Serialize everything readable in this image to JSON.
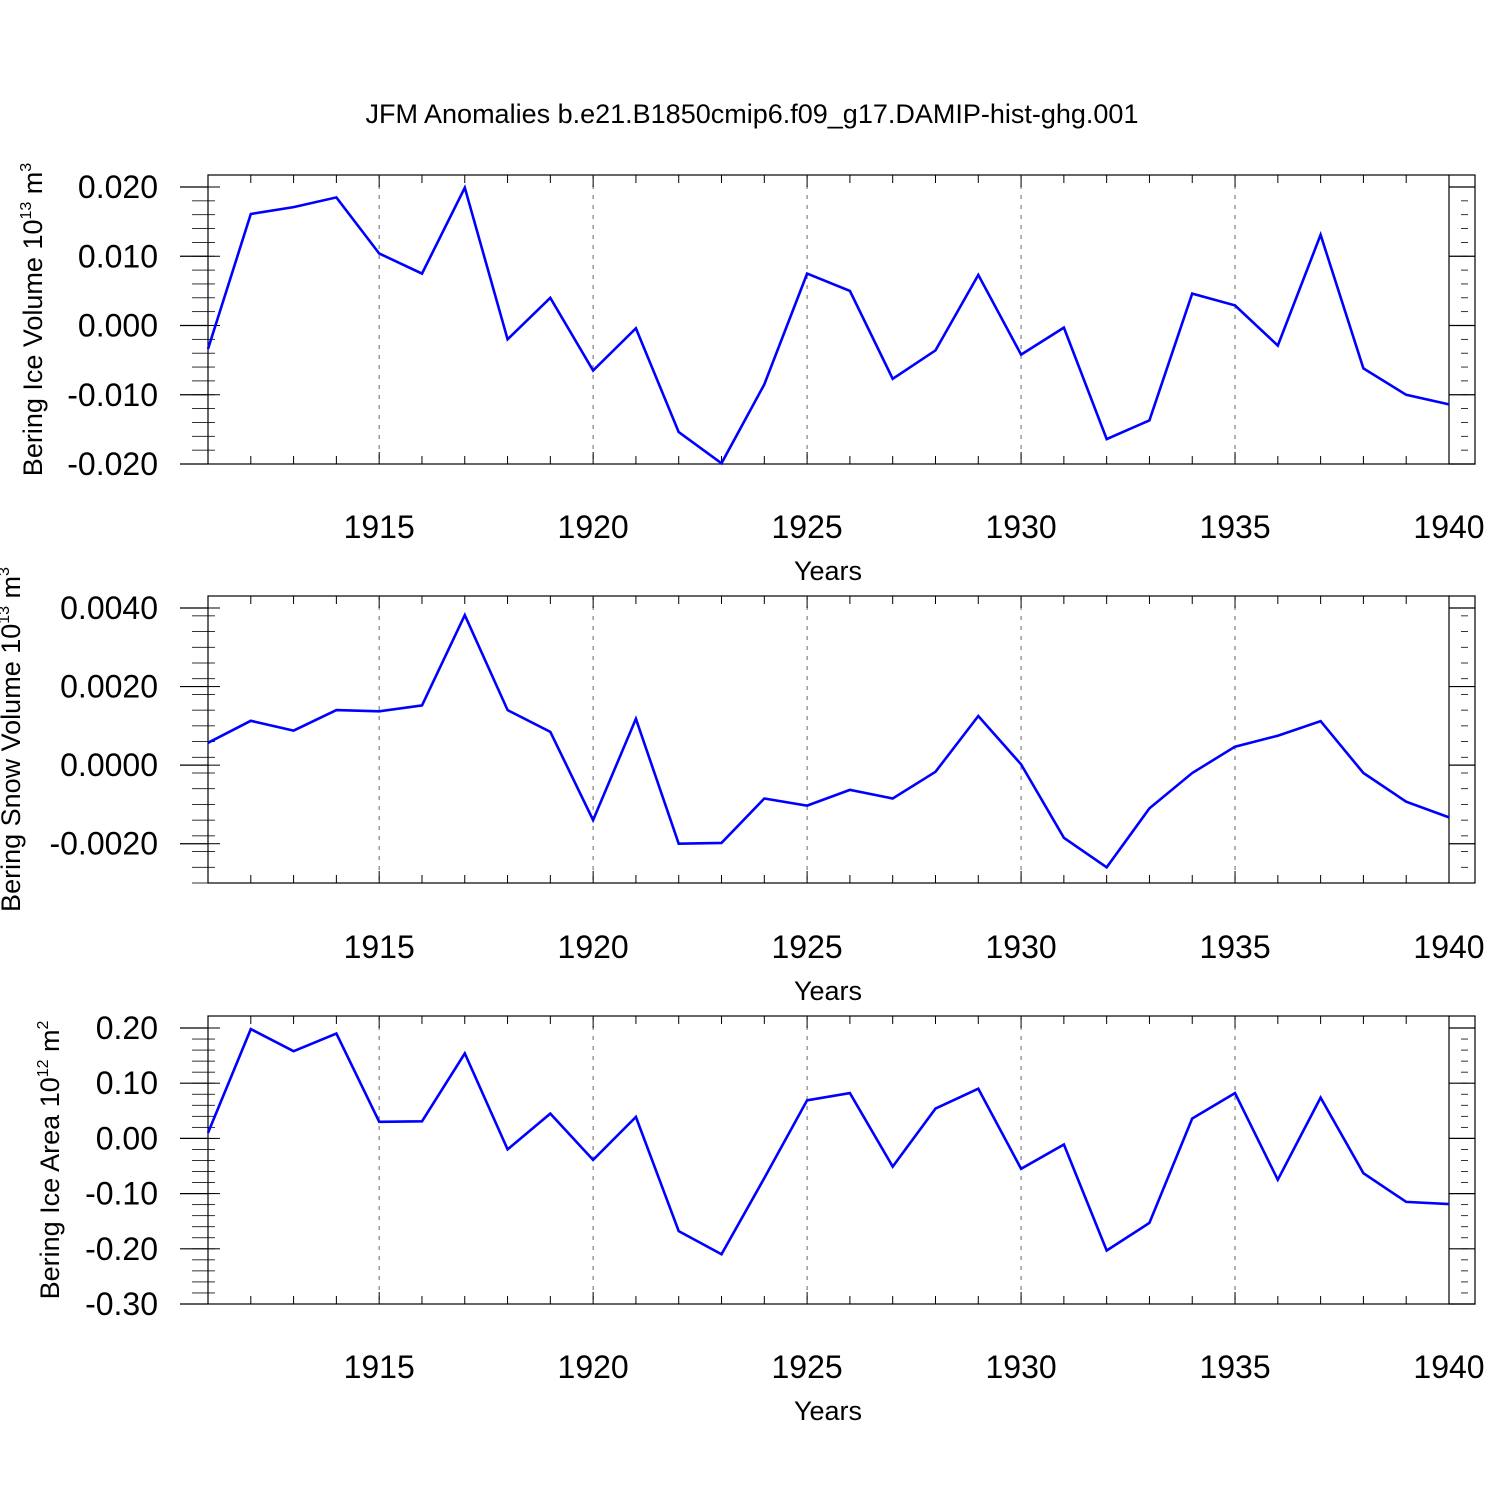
{
  "title": "JFM Anomalies b.e21.B1850cmip6.f09_g17.DAMIP-hist-ghg.001",
  "colors": {
    "line": "#0000ff",
    "axis": "#000000",
    "grid": "#808080"
  },
  "chart_data": [
    {
      "type": "line",
      "ylabel": {
        "main": "Bering Ice Volume 10",
        "sup": "13",
        "unit": " m",
        "unit_sup": "3"
      },
      "xlabel": "Years",
      "xlim": [
        1911,
        1940
      ],
      "ylim": [
        -0.02,
        0.02
      ],
      "yticks": [
        0.02,
        0.01,
        0.0,
        -0.01,
        -0.02
      ],
      "ytick_labels": [
        "0.020",
        "0.010",
        "0.000",
        "-0.010",
        "-0.020"
      ],
      "xticks": [
        1915,
        1920,
        1925,
        1930,
        1935,
        1940
      ],
      "xtick_labels": [
        "1915",
        "1920",
        "1925",
        "1930",
        "1935",
        "1940"
      ],
      "grid_x": [
        1915,
        1920,
        1925,
        1930,
        1935
      ],
      "series": [
        {
          "name": "Bering Ice Volume",
          "x": [
            1911,
            1912,
            1913,
            1914,
            1915,
            1916,
            1917,
            1918,
            1919,
            1920,
            1921,
            1922,
            1923,
            1924,
            1925,
            1926,
            1927,
            1928,
            1929,
            1930,
            1931,
            1932,
            1933,
            1934,
            1935,
            1936,
            1937,
            1938,
            1939,
            1940
          ],
          "values": [
            -0.0034,
            0.0161,
            0.0171,
            0.0185,
            0.0104,
            0.0075,
            0.0199,
            -0.002,
            0.004,
            -0.0065,
            -0.0004,
            -0.0154,
            -0.0199,
            -0.0085,
            0.0075,
            0.005,
            -0.0077,
            -0.0036,
            0.0073,
            -0.0042,
            -0.0003,
            -0.0164,
            -0.0137,
            0.0046,
            0.0029,
            -0.0029,
            0.0131,
            -0.0062,
            -0.01,
            -0.0114
          ]
        }
      ]
    },
    {
      "type": "line",
      "ylabel": {
        "main": "Bering Snow Volume 10",
        "sup": "13",
        "unit": " m",
        "unit_sup": "3"
      },
      "xlabel": "Years",
      "xlim": [
        1911,
        1940
      ],
      "ylim": [
        -0.003,
        0.004
      ],
      "yticks": [
        0.004,
        0.002,
        0.0,
        -0.002
      ],
      "ytick_labels": [
        "0.0040",
        "0.0020",
        "0.0000",
        "-0.0020"
      ],
      "xticks": [
        1915,
        1920,
        1925,
        1930,
        1935,
        1940
      ],
      "xtick_labels": [
        "1915",
        "1920",
        "1925",
        "1930",
        "1935",
        "1940"
      ],
      "grid_x": [
        1915,
        1920,
        1925,
        1930,
        1935
      ],
      "series": [
        {
          "name": "Bering Snow Volume",
          "x": [
            1911,
            1912,
            1913,
            1914,
            1915,
            1916,
            1917,
            1918,
            1919,
            1920,
            1921,
            1922,
            1923,
            1924,
            1925,
            1926,
            1927,
            1928,
            1929,
            1930,
            1931,
            1932,
            1933,
            1934,
            1935,
            1936,
            1937,
            1938,
            1939,
            1940
          ],
          "values": [
            0.00057,
            0.00113,
            0.00088,
            0.0014,
            0.00137,
            0.00152,
            0.00382,
            0.0014,
            0.00085,
            -0.0014,
            0.00118,
            -0.002,
            -0.00198,
            -0.00085,
            -0.00103,
            -0.00063,
            -0.00085,
            -0.00017,
            0.00125,
            2e-05,
            -0.00185,
            -0.0026,
            -0.0011,
            -0.0002,
            0.00047,
            0.00075,
            0.00112,
            -0.0002,
            -0.00093,
            -0.00133
          ]
        }
      ]
    },
    {
      "type": "line",
      "ylabel": {
        "main": "Bering Ice Area 10",
        "sup": "12",
        "unit": " m",
        "unit_sup": "2"
      },
      "xlabel": "Years",
      "xlim": [
        1911,
        1940
      ],
      "ylim": [
        -0.3,
        0.2
      ],
      "yticks": [
        0.2,
        0.1,
        0.0,
        -0.1,
        -0.2,
        -0.3
      ],
      "ytick_labels": [
        "0.20",
        "0.10",
        "0.00",
        "-0.10",
        "-0.20",
        "-0.30"
      ],
      "xticks": [
        1915,
        1920,
        1925,
        1930,
        1935,
        1940
      ],
      "xtick_labels": [
        "1915",
        "1920",
        "1925",
        "1930",
        "1935",
        "1940"
      ],
      "grid_x": [
        1915,
        1920,
        1925,
        1930,
        1935
      ],
      "series": [
        {
          "name": "Bering Ice Area",
          "x": [
            1911,
            1912,
            1913,
            1914,
            1915,
            1916,
            1917,
            1918,
            1919,
            1920,
            1921,
            1922,
            1923,
            1924,
            1925,
            1926,
            1927,
            1928,
            1929,
            1930,
            1931,
            1932,
            1933,
            1934,
            1935,
            1936,
            1937,
            1938,
            1939,
            1940
          ],
          "values": [
            0.01,
            0.198,
            0.158,
            0.19,
            0.03,
            0.031,
            0.154,
            -0.02,
            0.045,
            -0.039,
            0.039,
            -0.168,
            -0.21,
            -0.072,
            0.069,
            0.082,
            -0.051,
            0.054,
            0.09,
            -0.055,
            -0.011,
            -0.203,
            -0.153,
            0.036,
            0.082,
            -0.075,
            0.074,
            -0.063,
            -0.115,
            -0.119
          ]
        }
      ]
    }
  ]
}
